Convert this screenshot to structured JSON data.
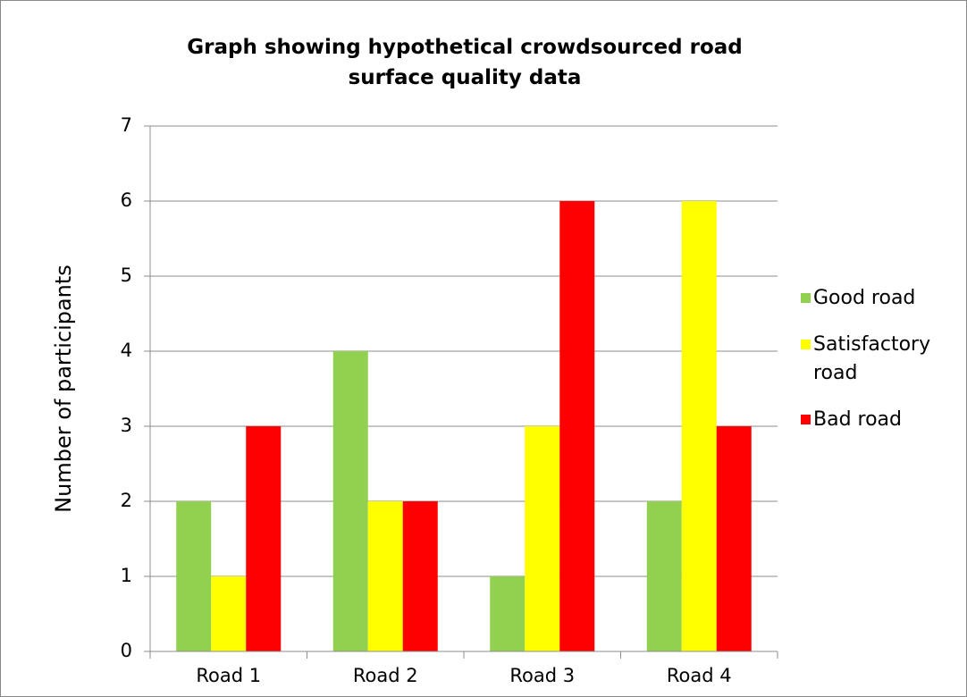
{
  "chart_data": {
    "type": "bar",
    "title": "Graph showing hypothetical crowdsourced road surface quality data",
    "y_label": "Number of participants",
    "categories": [
      "Road 1",
      "Road 2",
      "Road 3",
      "Road 4"
    ],
    "series": [
      {
        "name": "Good road",
        "color": "#92d050",
        "values": [
          2,
          4,
          1,
          2
        ]
      },
      {
        "name": "Satisfactory road",
        "color": "#ffff00",
        "values": [
          1,
          2,
          3,
          6
        ]
      },
      {
        "name": "Bad road",
        "color": "#ff0000",
        "values": [
          3,
          2,
          6,
          3
        ]
      }
    ],
    "ylim": [
      0,
      7
    ],
    "yticks": [
      0,
      1,
      2,
      3,
      4,
      5,
      6,
      7
    ],
    "grid": true,
    "legend": "right"
  }
}
